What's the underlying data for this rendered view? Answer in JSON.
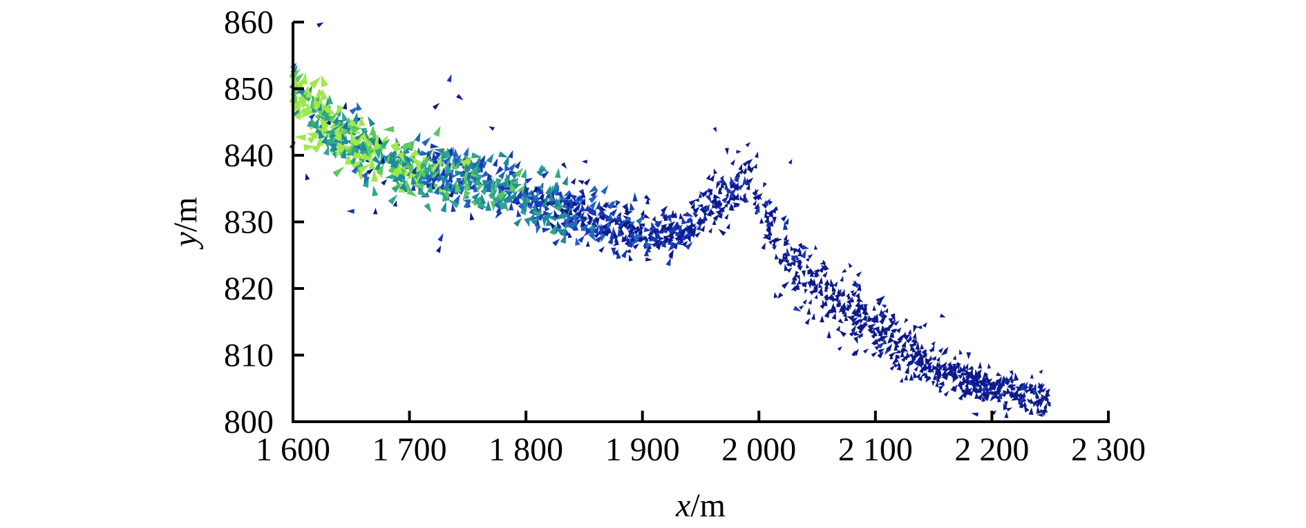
{
  "chart_data": {
    "type": "scatter",
    "marker": "triangle",
    "colors": [
      "#0d1a8c",
      "#1838b8",
      "#2166c0",
      "#1f8a9a",
      "#2ea88a",
      "#5cc85e",
      "#9ee84a"
    ],
    "xlabel_var": "x",
    "xlabel_unit": "/m",
    "ylabel_var": "y",
    "ylabel_unit": "/m",
    "xlim": [
      1600,
      2300
    ],
    "ylim": [
      800,
      860
    ],
    "x_ticks": [
      1600,
      1700,
      1800,
      1900,
      2000,
      2100,
      2200,
      2300
    ],
    "x_tick_labels": [
      "1 600",
      "1 700",
      "1 800",
      "1 900",
      "2 000",
      "2 100",
      "2 200",
      "2 300"
    ],
    "y_ticks": [
      800,
      810,
      820,
      830,
      840,
      850,
      860
    ],
    "y_tick_labels": [
      "800",
      "810",
      "820",
      "830",
      "840",
      "850",
      "860"
    ],
    "band": [
      {
        "x": 1600,
        "y": 849,
        "spread": 5,
        "density": 1.0
      },
      {
        "x": 1650,
        "y": 842,
        "spread": 4,
        "density": 1.0
      },
      {
        "x": 1700,
        "y": 838,
        "spread": 4,
        "density": 1.0
      },
      {
        "x": 1750,
        "y": 837,
        "spread": 4,
        "density": 1.0
      },
      {
        "x": 1800,
        "y": 834,
        "spread": 4,
        "density": 1.0
      },
      {
        "x": 1850,
        "y": 831,
        "spread": 4,
        "density": 1.0
      },
      {
        "x": 1900,
        "y": 828,
        "spread": 3,
        "density": 1.0
      },
      {
        "x": 1940,
        "y": 829,
        "spread": 3,
        "density": 1.0
      },
      {
        "x": 1970,
        "y": 834,
        "spread": 4,
        "density": 0.7
      },
      {
        "x": 1990,
        "y": 836,
        "spread": 4,
        "density": 0.6
      },
      {
        "x": 2010,
        "y": 829,
        "spread": 5,
        "density": 0.7
      },
      {
        "x": 2030,
        "y": 823,
        "spread": 4,
        "density": 0.9
      },
      {
        "x": 2060,
        "y": 819,
        "spread": 4,
        "density": 1.0
      },
      {
        "x": 2100,
        "y": 814,
        "spread": 4,
        "density": 1.0
      },
      {
        "x": 2150,
        "y": 808,
        "spread": 3,
        "density": 1.0
      },
      {
        "x": 2200,
        "y": 805,
        "spread": 2,
        "density": 1.0
      },
      {
        "x": 2250,
        "y": 804,
        "spread": 3,
        "density": 0.8
      }
    ],
    "magnitude_profile": [
      {
        "x": 1600,
        "m": 0.95
      },
      {
        "x": 1700,
        "m": 0.75
      },
      {
        "x": 1800,
        "m": 0.6
      },
      {
        "x": 1880,
        "m": 0.35
      },
      {
        "x": 1950,
        "m": 0.2
      },
      {
        "x": 2100,
        "m": 0.12
      },
      {
        "x": 2250,
        "m": 0.15
      }
    ],
    "n_points": 1800,
    "outlier_fraction": 0.05,
    "grid": false
  }
}
